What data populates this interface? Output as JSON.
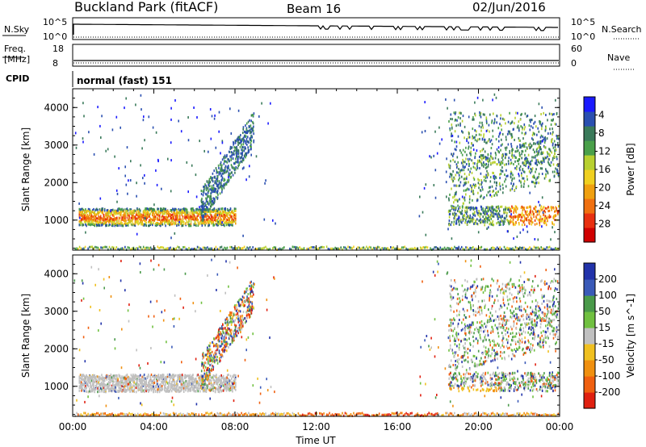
{
  "header": {
    "site": "Buckland Park (fitACF)",
    "beam": "Beam 16",
    "date": "02/Jun/2016"
  },
  "status_panels": {
    "nsky_label": "N.Sky",
    "nsearch_label": "N.Search",
    "log_top": "10^5",
    "log_bottom": "10^0",
    "freq_label_line1": "Freq.",
    "freq_label_line2": "[MHz]",
    "freq_top": "18",
    "freq_bottom": "8",
    "nave_label": "Nave",
    "nave_top": "60",
    "nave_bottom": "0",
    "cpid_label": "CPID",
    "cpid_value": "normal (fast) 151"
  },
  "chart_data": [
    {
      "type": "heatmap",
      "title": "",
      "xlabel": "",
      "ylabel": "Slant Range [km]",
      "xlim": [
        0,
        24
      ],
      "ylim": [
        200,
        4500
      ],
      "x_ticks": [
        0,
        4,
        8,
        12,
        16,
        20,
        24
      ],
      "x_tick_labels": [
        "00:00",
        "04:00",
        "08:00",
        "12:00",
        "16:00",
        "20:00",
        "00:00"
      ],
      "y_ticks": [
        1000,
        2000,
        3000,
        4000
      ],
      "y_tick_labels": [
        "1000",
        "2000",
        "3000",
        "4000"
      ],
      "colorbar": {
        "label": "Power [dB]",
        "ticks": [
          "4",
          "8",
          "12",
          "16",
          "20",
          "24",
          "28"
        ],
        "colors": [
          "#1a1aff",
          "#2a4fb0",
          "#3a7a5a",
          "#4aa04a",
          "#b8d030",
          "#f0d020",
          "#f0a010",
          "#f07010",
          "#e83010",
          "#d00000"
        ]
      },
      "features": [
        {
          "name": "E-region echoes",
          "x": [
            0.3,
            8.0
          ],
          "range_km": [
            900,
            1350
          ]
        },
        {
          "name": "Sporadic scatter",
          "x": [
            6.5,
            9.0
          ],
          "range_km": [
            1500,
            4000
          ]
        },
        {
          "name": "Evening echoes",
          "x": [
            19.0,
            24.0
          ],
          "range_km": [
            700,
            3900
          ]
        },
        {
          "name": "Near-range ground scatter",
          "x": [
            0,
            24
          ],
          "range_km": [
            200,
            350
          ]
        }
      ]
    },
    {
      "type": "heatmap",
      "title": "",
      "xlabel": "Time UT",
      "ylabel": "Slant Range [km]",
      "xlim": [
        0,
        24
      ],
      "ylim": [
        200,
        4500
      ],
      "x_ticks": [
        0,
        4,
        8,
        12,
        16,
        20,
        24
      ],
      "x_tick_labels": [
        "00:00",
        "04:00",
        "08:00",
        "12:00",
        "16:00",
        "20:00",
        "00:00"
      ],
      "y_ticks": [
        1000,
        2000,
        3000,
        4000
      ],
      "y_tick_labels": [
        "1000",
        "2000",
        "3000",
        "4000"
      ],
      "colorbar": {
        "label": "Velocity [m s^-1]",
        "ticks": [
          "200",
          "100",
          "50",
          "15",
          "-15",
          "-50",
          "-100",
          "-200"
        ],
        "colors": [
          "#2233aa",
          "#3a5ab8",
          "#4a9a4a",
          "#70c040",
          "#c0c0c0",
          "#f0c020",
          "#f09010",
          "#f06010",
          "#e02010"
        ]
      },
      "features": [
        {
          "name": "Low-velocity grey band",
          "x": [
            0.3,
            8.0
          ],
          "range_km": [
            850,
            1350
          ]
        },
        {
          "name": "Mixed velocities",
          "x": [
            6.5,
            9.0
          ],
          "range_km": [
            1500,
            4000
          ]
        },
        {
          "name": "Evening echoes",
          "x": [
            19.0,
            24.0
          ],
          "range_km": [
            700,
            3900
          ]
        },
        {
          "name": "Near-range echoes",
          "x": [
            0,
            24
          ],
          "range_km": [
            200,
            350
          ]
        }
      ]
    }
  ]
}
